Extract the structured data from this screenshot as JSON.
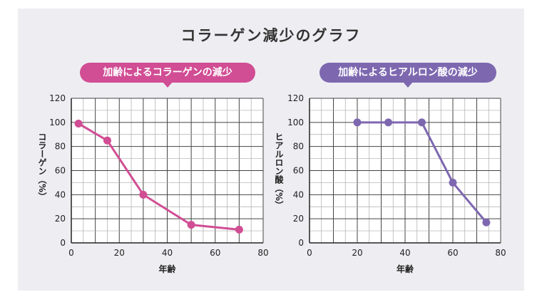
{
  "title": "コラーゲン減少のグラフ",
  "colors": {
    "left": "#d14d94",
    "right": "#7d68b0",
    "panel": "#eeeef2"
  },
  "chart_data": [
    {
      "type": "line",
      "title": "加齢によるコラーゲンの減少",
      "xlabel": "年齢",
      "ylabel": "コラーゲン（%）",
      "xlim": [
        0,
        80
      ],
      "ylim": [
        0,
        120
      ],
      "xticks": [
        0,
        20,
        40,
        60,
        80
      ],
      "yticks": [
        0,
        20,
        40,
        60,
        80,
        100,
        120
      ],
      "grid": true,
      "series": [
        {
          "x": [
            3,
            15,
            30,
            50,
            70
          ],
          "y": [
            99,
            85,
            40,
            15,
            11
          ]
        }
      ]
    },
    {
      "type": "line",
      "title": "加齢によるヒアルロン酸の減少",
      "xlabel": "年齢",
      "ylabel": "ヒアルロン酸（%）",
      "xlim": [
        0,
        80
      ],
      "ylim": [
        0,
        120
      ],
      "xticks": [
        0,
        20,
        40,
        60,
        80
      ],
      "yticks": [
        0,
        20,
        40,
        60,
        80,
        100,
        120
      ],
      "grid": true,
      "series": [
        {
          "x": [
            20,
            33,
            47,
            60,
            74
          ],
          "y": [
            100,
            100,
            100,
            50,
            17
          ]
        }
      ]
    }
  ]
}
